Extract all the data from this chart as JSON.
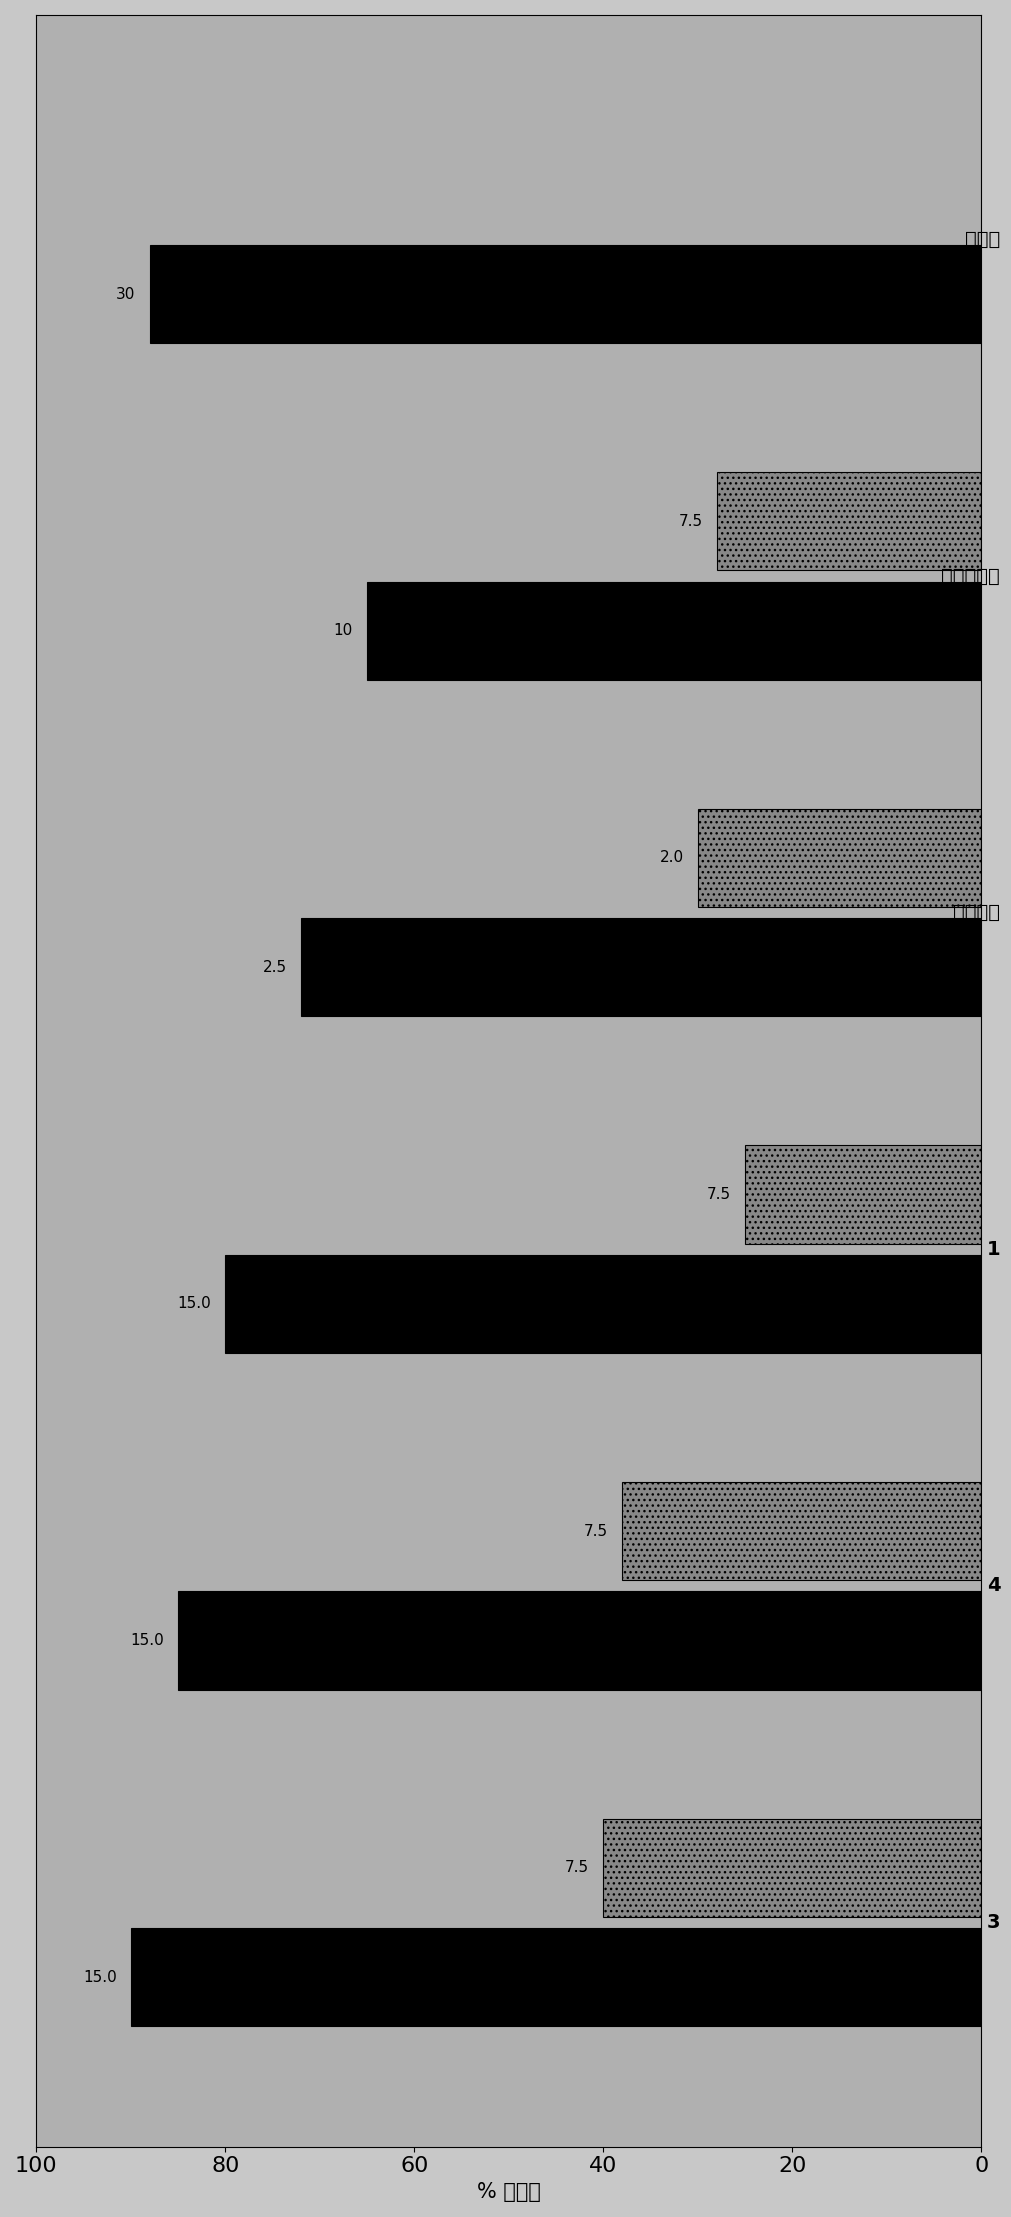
{
  "title": "",
  "xlabel": "% 变化率",
  "xlim": [
    0,
    100
  ],
  "xticks": [
    0,
    20,
    40,
    60,
    80,
    100
  ],
  "groups": [
    {
      "label": "3",
      "sublabel_dark": "15.0",
      "sublabel_light": "7.5",
      "dark_value": 90,
      "light_value": 40
    },
    {
      "label": "4",
      "sublabel_dark": "15.0",
      "sublabel_light": "7.5",
      "dark_value": 85,
      "light_value": 38
    },
    {
      "label": "1",
      "sublabel_dark": "15.0",
      "sublabel_light": "7.5",
      "dark_value": 80,
      "light_value": 25
    },
    {
      "label": "西布苯明",
      "sublabel_dark": "2.5",
      "sublabel_light": "2.0",
      "dark_value": 72,
      "light_value": 30
    },
    {
      "label": "丁氨苯内酮",
      "sublabel_dark": "10",
      "sublabel_light": "7.5",
      "dark_value": 65,
      "light_value": 28
    },
    {
      "label": "丙咊井",
      "sublabel_dark": "30",
      "sublabel_light": "",
      "dark_value": 88,
      "light_value": 0
    }
  ],
  "dark_color": "#000000",
  "light_color": "#a0a0a0",
  "bg_color": "#b0b0b0",
  "bar_height": 0.35,
  "figure_bg": "#c8c8c8"
}
